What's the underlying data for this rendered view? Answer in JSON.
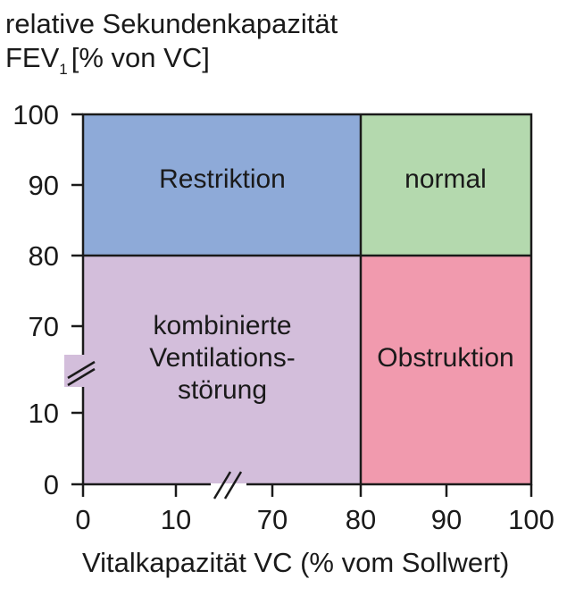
{
  "y_axis": {
    "line1": "relative Sekundenkapazität",
    "line2_main": "FEV",
    "line2_sub": "1",
    "line2_rest": "[% von VC]",
    "ticks": [
      "100",
      "90",
      "80",
      "70",
      "10",
      "0"
    ]
  },
  "x_axis": {
    "label": "Vitalkapazität VC (% vom Sollwert)",
    "ticks": [
      "0",
      "10",
      "70",
      "80",
      "90",
      "100"
    ]
  },
  "regions": {
    "restriktion": {
      "label": "Restriktion",
      "color": "#8eaad8"
    },
    "normal": {
      "label": "normal",
      "color": "#b4d9ae"
    },
    "combined": {
      "line1": "kombinierte",
      "line2": "Ventilations-",
      "line3": "störung",
      "color": "#d3bedb"
    },
    "obstruktion": {
      "label": "Obstruktion",
      "color": "#f19aae"
    }
  }
}
